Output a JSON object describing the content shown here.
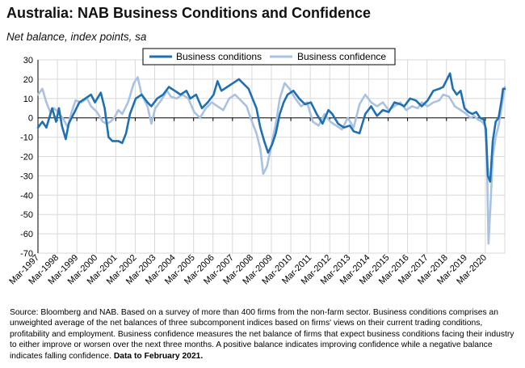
{
  "title": "Australia: NAB Business Conditions and Confidence",
  "subtitle": "Net balance, index points, sa",
  "source_text": "Source: Bloomberg and NAB. Based on a survey of more than 400 firms from the non-farm sector.  Business conditions comprises an unweighted average of the net balances of three subcomponent indices based on firms' views on their current trading conditions, profitability and employment.  Business confidence measures the net balance of firms that expect business conditions facing their industry to either improve or worsen over the next three months.  A positive balance indicates improving confidence while a negative balance indicates falling confidence.",
  "source_bold": "Data to February 2021.",
  "colors": {
    "conditions": "#1f6fb3",
    "confidence": "#a9c2e2",
    "grid": "#d9d9d9",
    "axis": "#000000"
  },
  "chart_data": {
    "type": "line",
    "ylim": [
      -70,
      30
    ],
    "yticks": [
      30,
      20,
      10,
      0,
      -10,
      -20,
      -30,
      -40,
      -50,
      -60,
      -70
    ],
    "xlim": [
      1997.17,
      2021.17
    ],
    "xticks": [
      "Mar-1997",
      "Mar-1998",
      "Mar-1999",
      "Mar-2000",
      "Mar-2001",
      "Mar-2002",
      "Mar-2003",
      "Mar-2004",
      "Mar-2005",
      "Mar-2006",
      "Mar-2007",
      "Mar-2008",
      "Mar-2009",
      "Mar-2010",
      "Mar-2011",
      "Mar-2012",
      "Mar-2013",
      "Mar-2014",
      "Mar-2015",
      "Mar-2016",
      "Mar-2017",
      "Mar-2018",
      "Mar-2019",
      "Mar-2020"
    ],
    "legend_position": "top-center",
    "series": [
      {
        "name": "Business conditions",
        "points": [
          [
            1997.17,
            -5
          ],
          [
            1997.4,
            -2
          ],
          [
            1997.6,
            -5
          ],
          [
            1997.9,
            5
          ],
          [
            1998.1,
            -2
          ],
          [
            1998.25,
            5
          ],
          [
            1998.4,
            -4
          ],
          [
            1998.6,
            -11
          ],
          [
            1998.75,
            -3
          ],
          [
            1999.0,
            2
          ],
          [
            1999.3,
            8
          ],
          [
            1999.6,
            10
          ],
          [
            1999.9,
            12
          ],
          [
            2000.1,
            8
          ],
          [
            2000.4,
            13
          ],
          [
            2000.6,
            5
          ],
          [
            2000.8,
            -10
          ],
          [
            2001.0,
            -12
          ],
          [
            2001.3,
            -12
          ],
          [
            2001.5,
            -13
          ],
          [
            2001.7,
            -8
          ],
          [
            2001.9,
            2
          ],
          [
            2002.2,
            10
          ],
          [
            2002.5,
            12
          ],
          [
            2002.8,
            8
          ],
          [
            2003.0,
            6
          ],
          [
            2003.3,
            10
          ],
          [
            2003.6,
            12
          ],
          [
            2003.9,
            16
          ],
          [
            2004.2,
            14
          ],
          [
            2004.5,
            12
          ],
          [
            2004.8,
            14
          ],
          [
            2005.0,
            10
          ],
          [
            2005.3,
            12
          ],
          [
            2005.6,
            5
          ],
          [
            2005.9,
            8
          ],
          [
            2006.2,
            12
          ],
          [
            2006.4,
            19
          ],
          [
            2006.6,
            14
          ],
          [
            2006.9,
            16
          ],
          [
            2007.2,
            18
          ],
          [
            2007.5,
            20
          ],
          [
            2007.8,
            17
          ],
          [
            2008.0,
            15
          ],
          [
            2008.2,
            10
          ],
          [
            2008.4,
            5
          ],
          [
            2008.6,
            -5
          ],
          [
            2008.8,
            -12
          ],
          [
            2009.0,
            -18
          ],
          [
            2009.2,
            -14
          ],
          [
            2009.4,
            -8
          ],
          [
            2009.6,
            2
          ],
          [
            2009.8,
            8
          ],
          [
            2010.0,
            12
          ],
          [
            2010.3,
            14
          ],
          [
            2010.6,
            10
          ],
          [
            2010.9,
            7
          ],
          [
            2011.2,
            8
          ],
          [
            2011.5,
            2
          ],
          [
            2011.8,
            -3
          ],
          [
            2012.1,
            4
          ],
          [
            2012.3,
            2
          ],
          [
            2012.6,
            -3
          ],
          [
            2012.9,
            -5
          ],
          [
            2013.2,
            -4
          ],
          [
            2013.4,
            -7
          ],
          [
            2013.7,
            -8
          ],
          [
            2014.0,
            2
          ],
          [
            2014.3,
            6
          ],
          [
            2014.6,
            1
          ],
          [
            2014.9,
            4
          ],
          [
            2015.2,
            3
          ],
          [
            2015.5,
            8
          ],
          [
            2015.8,
            7
          ],
          [
            2016.0,
            6
          ],
          [
            2016.3,
            10
          ],
          [
            2016.6,
            9
          ],
          [
            2016.9,
            6
          ],
          [
            2017.2,
            9
          ],
          [
            2017.5,
            14
          ],
          [
            2017.8,
            15
          ],
          [
            2018.0,
            16
          ],
          [
            2018.2,
            20
          ],
          [
            2018.35,
            23
          ],
          [
            2018.5,
            15
          ],
          [
            2018.7,
            12
          ],
          [
            2018.9,
            14
          ],
          [
            2019.1,
            5
          ],
          [
            2019.3,
            3
          ],
          [
            2019.5,
            2
          ],
          [
            2019.7,
            3
          ],
          [
            2019.9,
            0
          ],
          [
            2020.1,
            -1
          ],
          [
            2020.2,
            -6
          ],
          [
            2020.3,
            -30
          ],
          [
            2020.42,
            -33
          ],
          [
            2020.55,
            -12
          ],
          [
            2020.7,
            -2
          ],
          [
            2020.85,
            0
          ],
          [
            2021.0,
            9
          ],
          [
            2021.08,
            15
          ],
          [
            2021.17,
            15
          ]
        ]
      },
      {
        "name": "Business confidence",
        "points": [
          [
            1997.17,
            12
          ],
          [
            1997.4,
            15
          ],
          [
            1997.6,
            8
          ],
          [
            1997.8,
            3
          ],
          [
            1998.0,
            5
          ],
          [
            1998.2,
            3
          ],
          [
            1998.5,
            -1
          ],
          [
            1998.7,
            -5
          ],
          [
            1998.9,
            3
          ],
          [
            1999.1,
            9
          ],
          [
            1999.4,
            8
          ],
          [
            1999.7,
            10
          ],
          [
            1999.9,
            6
          ],
          [
            2000.2,
            3
          ],
          [
            2000.5,
            -2
          ],
          [
            2000.7,
            -3
          ],
          [
            2000.9,
            -2
          ],
          [
            2001.1,
            0
          ],
          [
            2001.3,
            4
          ],
          [
            2001.5,
            2
          ],
          [
            2001.8,
            8
          ],
          [
            2002.1,
            18
          ],
          [
            2002.3,
            21
          ],
          [
            2002.5,
            12
          ],
          [
            2002.8,
            6
          ],
          [
            2003.0,
            -3
          ],
          [
            2003.2,
            5
          ],
          [
            2003.5,
            9
          ],
          [
            2003.8,
            14
          ],
          [
            2004.0,
            11
          ],
          [
            2004.3,
            10
          ],
          [
            2004.6,
            12
          ],
          [
            2004.9,
            10
          ],
          [
            2005.2,
            3
          ],
          [
            2005.5,
            0
          ],
          [
            2005.8,
            5
          ],
          [
            2006.1,
            8
          ],
          [
            2006.4,
            6
          ],
          [
            2006.7,
            4
          ],
          [
            2007.0,
            10
          ],
          [
            2007.3,
            12
          ],
          [
            2007.6,
            9
          ],
          [
            2007.9,
            6
          ],
          [
            2008.1,
            0
          ],
          [
            2008.4,
            -8
          ],
          [
            2008.6,
            -16
          ],
          [
            2008.75,
            -29
          ],
          [
            2008.95,
            -25
          ],
          [
            2009.15,
            -15
          ],
          [
            2009.4,
            -3
          ],
          [
            2009.6,
            10
          ],
          [
            2009.85,
            18
          ],
          [
            2010.1,
            15
          ],
          [
            2010.4,
            10
          ],
          [
            2010.7,
            6
          ],
          [
            2011.0,
            8
          ],
          [
            2011.3,
            -2
          ],
          [
            2011.6,
            -4
          ],
          [
            2011.9,
            2
          ],
          [
            2012.2,
            -2
          ],
          [
            2012.5,
            -4
          ],
          [
            2012.8,
            -6
          ],
          [
            2013.1,
            0
          ],
          [
            2013.4,
            -5
          ],
          [
            2013.7,
            7
          ],
          [
            2014.0,
            12
          ],
          [
            2014.3,
            8
          ],
          [
            2014.6,
            6
          ],
          [
            2014.9,
            8
          ],
          [
            2015.2,
            4
          ],
          [
            2015.5,
            6
          ],
          [
            2015.8,
            8
          ],
          [
            2016.1,
            4
          ],
          [
            2016.4,
            6
          ],
          [
            2016.7,
            5
          ],
          [
            2016.9,
            8
          ],
          [
            2017.2,
            6
          ],
          [
            2017.5,
            8
          ],
          [
            2017.8,
            9
          ],
          [
            2018.0,
            12
          ],
          [
            2018.3,
            11
          ],
          [
            2018.6,
            6
          ],
          [
            2018.9,
            4
          ],
          [
            2019.2,
            2
          ],
          [
            2019.4,
            0
          ],
          [
            2019.6,
            1
          ],
          [
            2019.8,
            -1
          ],
          [
            2020.0,
            -2
          ],
          [
            2020.15,
            -4
          ],
          [
            2020.25,
            -20
          ],
          [
            2020.33,
            -65
          ],
          [
            2020.43,
            -46
          ],
          [
            2020.55,
            -20
          ],
          [
            2020.7,
            -10
          ],
          [
            2020.85,
            -4
          ],
          [
            2021.0,
            5
          ],
          [
            2021.1,
            12
          ],
          [
            2021.17,
            16
          ]
        ]
      }
    ]
  }
}
